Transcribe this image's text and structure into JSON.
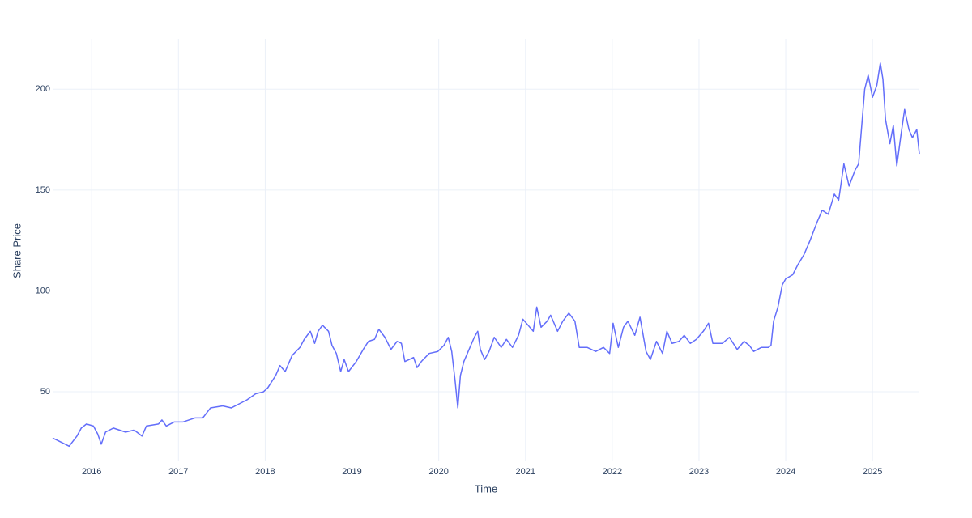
{
  "chart_data": {
    "type": "line",
    "x_label": "Time",
    "y_label": "Share Price",
    "color": "#636efa",
    "grid": true,
    "xlim": [
      2015.55,
      2025.54
    ],
    "ylim": [
      15.5,
      225
    ],
    "xticks": [
      2016,
      2017,
      2018,
      2019,
      2020,
      2021,
      2022,
      2023,
      2024,
      2025
    ],
    "yticks": [
      50,
      100,
      150,
      200
    ],
    "x": [
      2015.55,
      2015.6,
      2015.74,
      2015.83,
      2015.88,
      2015.94,
      2016.02,
      2016.07,
      2016.11,
      2016.16,
      2016.25,
      2016.39,
      2016.49,
      2016.58,
      2016.63,
      2016.77,
      2016.81,
      2016.86,
      2016.95,
      2017.05,
      2017.19,
      2017.28,
      2017.37,
      2017.51,
      2017.61,
      2017.7,
      2017.79,
      2017.89,
      2017.98,
      2018.03,
      2018.12,
      2018.17,
      2018.23,
      2018.31,
      2018.4,
      2018.45,
      2018.52,
      2018.57,
      2018.61,
      2018.66,
      2018.73,
      2018.77,
      2018.82,
      2018.87,
      2018.91,
      2018.96,
      2019.05,
      2019.13,
      2019.19,
      2019.26,
      2019.31,
      2019.38,
      2019.45,
      2019.52,
      2019.57,
      2019.61,
      2019.71,
      2019.75,
      2019.8,
      2019.89,
      2019.99,
      2020.06,
      2020.11,
      2020.15,
      2020.19,
      2020.22,
      2020.25,
      2020.29,
      2020.34,
      2020.41,
      2020.45,
      2020.48,
      2020.53,
      2020.58,
      2020.64,
      2020.72,
      2020.78,
      2020.85,
      2020.92,
      2020.97,
      2021.03,
      2021.09,
      2021.13,
      2021.18,
      2021.25,
      2021.29,
      2021.37,
      2021.43,
      2021.5,
      2021.57,
      2021.62,
      2021.71,
      2021.81,
      2021.9,
      2021.97,
      2022.01,
      2022.07,
      2022.13,
      2022.18,
      2022.26,
      2022.32,
      2022.39,
      2022.44,
      2022.51,
      2022.58,
      2022.63,
      2022.69,
      2022.77,
      2022.83,
      2022.9,
      2022.97,
      2023.05,
      2023.11,
      2023.16,
      2023.27,
      2023.35,
      2023.44,
      2023.52,
      2023.58,
      2023.63,
      2023.72,
      2023.8,
      2023.83,
      2023.86,
      2023.91,
      2023.96,
      2024.0,
      2024.08,
      2024.14,
      2024.21,
      2024.28,
      2024.36,
      2024.42,
      2024.49,
      2024.56,
      2024.61,
      2024.67,
      2024.73,
      2024.8,
      2024.84,
      2024.91,
      2024.95,
      2025.0,
      2025.05,
      2025.09,
      2025.12,
      2025.15,
      2025.2,
      2025.24,
      2025.28,
      2025.33,
      2025.37,
      2025.42,
      2025.46,
      2025.51,
      2025.54
    ],
    "values": [
      27,
      26,
      23,
      28,
      32,
      34,
      33,
      29,
      24,
      30,
      32,
      30,
      31,
      28,
      33,
      34,
      36,
      33,
      35,
      35,
      37,
      37,
      42,
      43,
      42,
      44,
      46,
      49,
      50,
      52,
      58,
      63,
      60,
      68,
      72,
      76,
      80,
      74,
      80,
      83,
      80,
      73,
      69,
      60,
      66,
      60,
      65,
      71,
      75,
      76,
      81,
      77,
      71,
      75,
      74,
      65,
      67,
      62,
      65,
      69,
      70,
      73,
      77,
      70,
      55,
      42,
      58,
      65,
      70,
      77,
      80,
      71,
      66,
      70,
      77,
      72,
      76,
      72,
      78,
      86,
      83,
      80,
      92,
      82,
      85,
      88,
      80,
      85,
      89,
      85,
      72,
      72,
      70,
      72,
      69,
      84,
      72,
      82,
      85,
      78,
      87,
      70,
      66,
      75,
      69,
      80,
      74,
      75,
      78,
      74,
      76,
      80,
      84,
      74,
      74,
      77,
      71,
      75,
      73,
      70,
      72,
      72,
      73,
      85,
      92,
      103,
      106,
      108,
      113,
      118,
      125,
      134,
      140,
      138,
      148,
      145,
      163,
      152,
      160,
      163,
      200,
      207,
      196,
      202,
      213,
      205,
      185,
      173,
      182,
      162,
      178,
      190,
      180,
      176,
      180,
      168
    ]
  }
}
